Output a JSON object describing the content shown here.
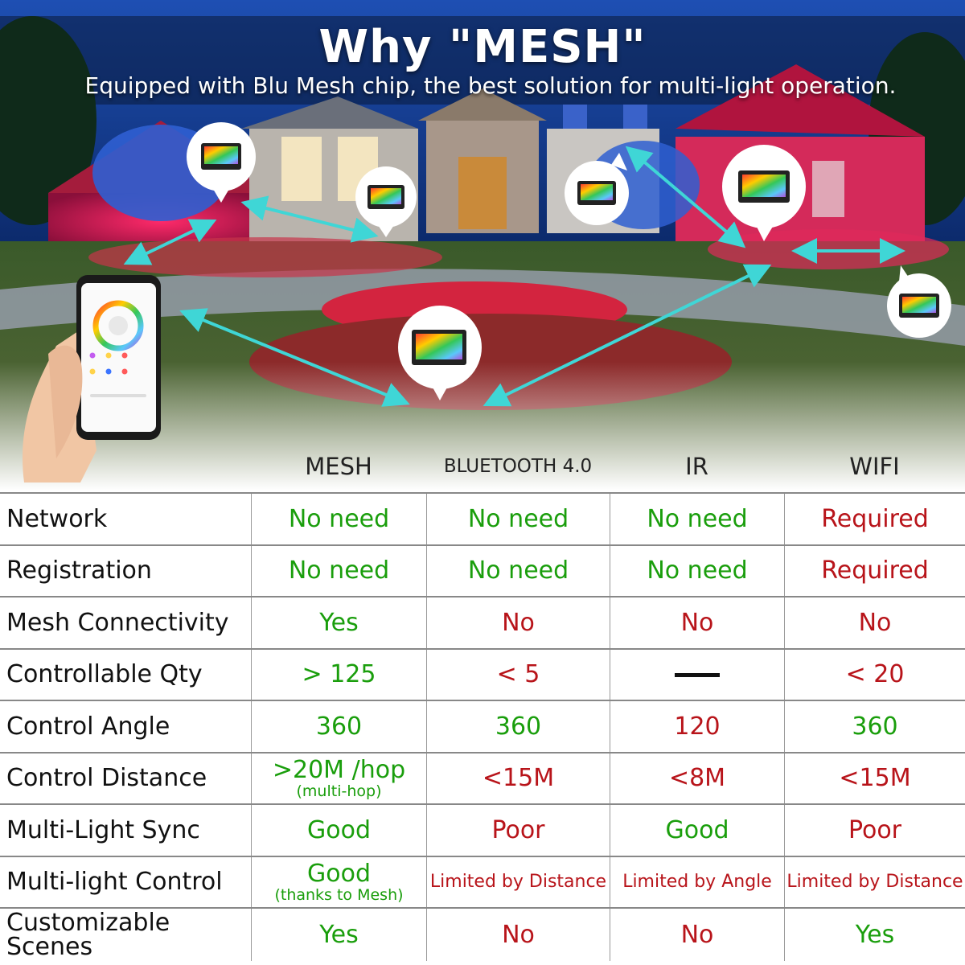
{
  "header": {
    "title": "Why \"MESH\"",
    "subtitle": "Equipped with Blu Mesh chip, the best solution for multi-light operation."
  },
  "columns": [
    "MESH",
    "BLUETOOTH 4.0",
    "IR",
    "WIFI"
  ],
  "rows": [
    {
      "label": "Network",
      "mesh": {
        "text": "No need",
        "status": "good"
      },
      "bluetooth": {
        "text": "No need",
        "status": "good"
      },
      "ir": {
        "text": "No need",
        "status": "good"
      },
      "wifi": {
        "text": "Required",
        "status": "bad"
      }
    },
    {
      "label": "Registration",
      "mesh": {
        "text": "No need",
        "status": "good"
      },
      "bluetooth": {
        "text": "No need",
        "status": "good"
      },
      "ir": {
        "text": "No need",
        "status": "good"
      },
      "wifi": {
        "text": "Required",
        "status": "bad"
      }
    },
    {
      "label": "Mesh Connectivity",
      "mesh": {
        "text": "Yes",
        "status": "good"
      },
      "bluetooth": {
        "text": "No",
        "status": "bad"
      },
      "ir": {
        "text": "No",
        "status": "bad"
      },
      "wifi": {
        "text": "No",
        "status": "bad"
      }
    },
    {
      "label": "Controllable Qty",
      "mesh": {
        "text": "> 125",
        "status": "good"
      },
      "bluetooth": {
        "text": "< 5",
        "status": "bad"
      },
      "ir": {
        "text": "—",
        "status": "none"
      },
      "wifi": {
        "text": "< 20",
        "status": "bad"
      }
    },
    {
      "label": "Control Angle",
      "mesh": {
        "text": "360",
        "status": "good"
      },
      "bluetooth": {
        "text": "360",
        "status": "good"
      },
      "ir": {
        "text": "120",
        "status": "bad"
      },
      "wifi": {
        "text": "360",
        "status": "good"
      }
    },
    {
      "label": "Control Distance",
      "mesh": {
        "text": ">20M /hop",
        "note": "(multi-hop)",
        "status": "good"
      },
      "bluetooth": {
        "text": "<15M",
        "status": "bad"
      },
      "ir": {
        "text": "<8M",
        "status": "bad"
      },
      "wifi": {
        "text": "<15M",
        "status": "bad"
      }
    },
    {
      "label": "Multi-Light Sync",
      "mesh": {
        "text": "Good",
        "status": "good"
      },
      "bluetooth": {
        "text": "Poor",
        "status": "bad"
      },
      "ir": {
        "text": "Good",
        "status": "good"
      },
      "wifi": {
        "text": "Poor",
        "status": "bad"
      }
    },
    {
      "label": "Multi-light Control",
      "mesh": {
        "text": "Good",
        "note": "(thanks to Mesh)",
        "status": "good"
      },
      "bluetooth": {
        "text": "Limited by Distance",
        "status": "bad"
      },
      "ir": {
        "text": "Limited by Angle",
        "status": "bad"
      },
      "wifi": {
        "text": "Limited by Distance",
        "status": "bad"
      }
    },
    {
      "label": "Customizable Scenes",
      "mesh": {
        "text": "Yes",
        "status": "good"
      },
      "bluetooth": {
        "text": "No",
        "status": "bad"
      },
      "ir": {
        "text": "No",
        "status": "bad"
      },
      "wifi": {
        "text": "Yes",
        "status": "good"
      }
    }
  ],
  "colors": {
    "good": "#1a9e0c",
    "bad": "#b8141a",
    "sky": "#0d2b66",
    "accent_arrow": "#3fd6d6"
  },
  "icons": [
    "floodlight-icon",
    "smartphone-app-icon",
    "double-arrow-icon",
    "color-wheel-icon"
  ]
}
